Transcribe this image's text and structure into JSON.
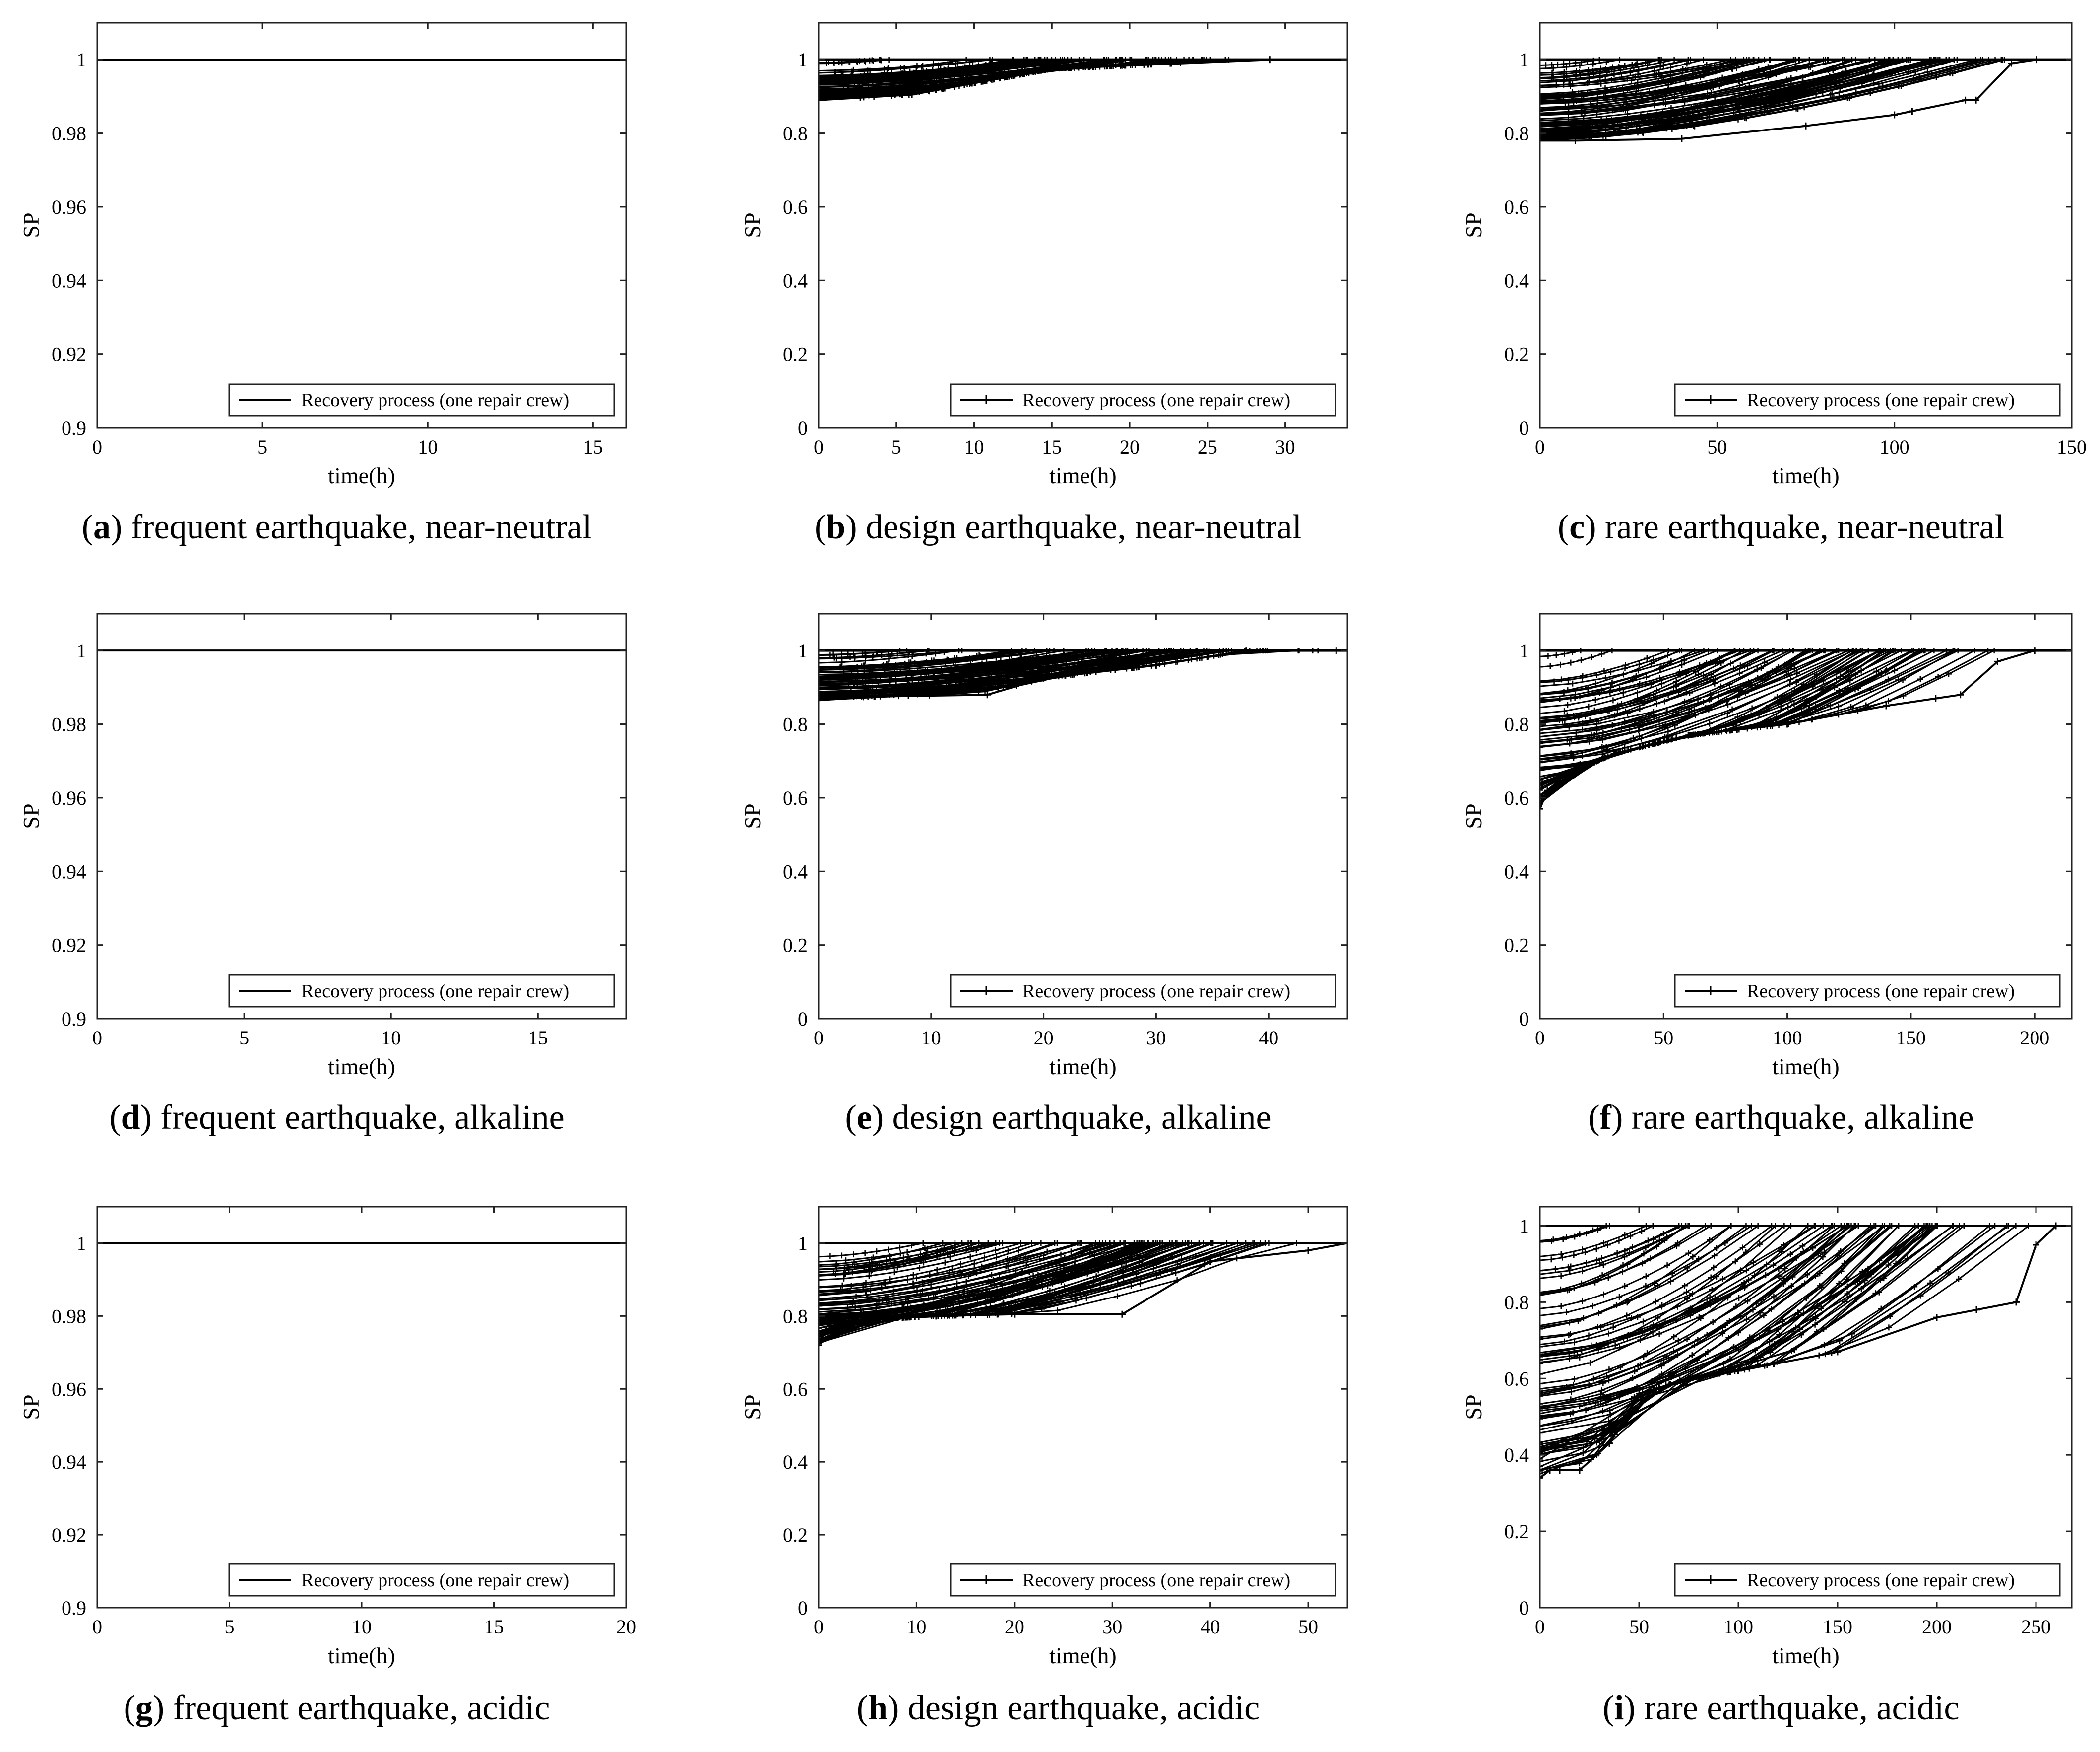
{
  "chart_data": [
    {
      "id": "a",
      "type": "line",
      "caption_letter": "a",
      "caption_text": " frequent earthquake, near-neutral",
      "xlabel": "time(h)",
      "ylabel": "SP",
      "xlim": [
        0,
        16
      ],
      "ylim": [
        0.9,
        1.01
      ],
      "xticks": [
        0,
        5,
        10,
        15
      ],
      "yticks": [
        0.9,
        0.92,
        0.94,
        0.96,
        0.98,
        1
      ],
      "ytick_labels": [
        "0.9",
        "0.92",
        "0.94",
        "0.96",
        "0.98",
        "1"
      ],
      "legend": "Recovery process (one repair crew)",
      "legend_position": "bottom-right",
      "grid": false,
      "markers": false,
      "series": [],
      "x": [
        0,
        16
      ],
      "y": [
        1,
        1
      ]
    },
    {
      "id": "b",
      "type": "line",
      "caption_letter": "b",
      "caption_text": " design earthquake, near-neutral",
      "xlabel": "time(h)",
      "ylabel": "SP",
      "xlim": [
        0,
        34
      ],
      "ylim": [
        0,
        1.1
      ],
      "xticks": [
        0,
        5,
        10,
        15,
        20,
        25,
        30
      ],
      "yticks": [
        0,
        0.2,
        0.4,
        0.6,
        0.8,
        1
      ],
      "ytick_labels": [
        "0",
        "0.2",
        "0.4",
        "0.6",
        "0.8",
        "1"
      ],
      "legend": "Recovery process (one repair crew)",
      "legend_position": "bottom-right",
      "grid": false,
      "markers": true,
      "lower_envelope": {
        "x": [
          0,
          6,
          15,
          29
        ],
        "y": [
          0.89,
          0.905,
          0.975,
          1.0
        ]
      },
      "final": {
        "x": 34,
        "y": 1.0
      }
    },
    {
      "id": "c",
      "type": "line",
      "caption_letter": "c",
      "caption_text": " rare earthquake, near-neutral",
      "xlabel": "time(h)",
      "ylabel": "SP",
      "xlim": [
        0,
        150
      ],
      "ylim": [
        0,
        1.1
      ],
      "xticks": [
        0,
        50,
        100,
        150
      ],
      "yticks": [
        0,
        0.2,
        0.4,
        0.6,
        0.8,
        1
      ],
      "ytick_labels": [
        "0",
        "0.2",
        "0.4",
        "0.6",
        "0.8",
        "1"
      ],
      "legend": "Recovery process (one repair crew)",
      "legend_position": "bottom-right",
      "grid": false,
      "markers": true,
      "lower_envelope": {
        "x": [
          0,
          10,
          40,
          75,
          100,
          105,
          120,
          123,
          133,
          140
        ],
        "y": [
          0.78,
          0.78,
          0.785,
          0.82,
          0.85,
          0.86,
          0.89,
          0.89,
          0.99,
          1.0
        ]
      },
      "final": {
        "x": 150,
        "y": 1.0
      }
    },
    {
      "id": "d",
      "type": "line",
      "caption_letter": "d",
      "caption_text": " frequent earthquake, alkaline",
      "xlabel": "time(h)",
      "ylabel": "SP",
      "xlim": [
        0,
        18
      ],
      "ylim": [
        0.9,
        1.01
      ],
      "xticks": [
        0,
        5,
        10,
        15
      ],
      "yticks": [
        0.9,
        0.92,
        0.94,
        0.96,
        0.98,
        1
      ],
      "ytick_labels": [
        "0.9",
        "0.92",
        "0.94",
        "0.96",
        "0.98",
        "1"
      ],
      "legend": "Recovery process (one repair crew)",
      "legend_position": "bottom-right",
      "grid": false,
      "markers": false,
      "series": [],
      "x": [
        0,
        18
      ],
      "y": [
        1,
        1
      ]
    },
    {
      "id": "e",
      "type": "line",
      "caption_letter": "e",
      "caption_text": " design earthquake, alkaline",
      "xlabel": "time(h)",
      "ylabel": "SP",
      "xlim": [
        0,
        47
      ],
      "ylim": [
        0,
        1.1
      ],
      "xticks": [
        0,
        10,
        20,
        30,
        40
      ],
      "yticks": [
        0,
        0.2,
        0.4,
        0.6,
        0.8,
        1
      ],
      "ytick_labels": [
        "0",
        "0.2",
        "0.4",
        "0.6",
        "0.8",
        "1"
      ],
      "legend": "Recovery process (one repair crew)",
      "legend_position": "bottom-right",
      "grid": false,
      "markers": true,
      "lower_envelope": {
        "x": [
          0,
          5,
          15,
          20,
          30,
          38,
          46
        ],
        "y": [
          0.865,
          0.875,
          0.88,
          0.925,
          0.96,
          1.0,
          1.0
        ]
      },
      "final": {
        "x": 47,
        "y": 1.0
      }
    },
    {
      "id": "f",
      "type": "line",
      "caption_letter": "f",
      "caption_text": " rare earthquake, alkaline",
      "xlabel": "time(h)",
      "ylabel": "SP",
      "xlim": [
        0,
        215
      ],
      "ylim": [
        0,
        1.1
      ],
      "xticks": [
        0,
        50,
        100,
        150,
        200
      ],
      "yticks": [
        0,
        0.2,
        0.4,
        0.6,
        0.8,
        1
      ],
      "ytick_labels": [
        "0",
        "0.2",
        "0.4",
        "0.6",
        "0.8",
        "1"
      ],
      "legend": "Recovery process (one repair crew)",
      "legend_position": "bottom-right",
      "grid": false,
      "markers": true,
      "lower_envelope": {
        "x": [
          0,
          3,
          10,
          30,
          60,
          100,
          140,
          160,
          170,
          185,
          200
        ],
        "y": [
          0.57,
          0.62,
          0.66,
          0.72,
          0.77,
          0.8,
          0.85,
          0.87,
          0.88,
          0.97,
          1.0
        ]
      },
      "final": {
        "x": 215,
        "y": 1.0
      }
    },
    {
      "id": "g",
      "type": "line",
      "caption_letter": "g",
      "caption_text": " frequent earthquake, acidic",
      "xlabel": "time(h)",
      "ylabel": "SP",
      "xlim": [
        0,
        20
      ],
      "ylim": [
        0.9,
        1.01
      ],
      "xticks": [
        0,
        5,
        10,
        15,
        20
      ],
      "yticks": [
        0.9,
        0.92,
        0.94,
        0.96,
        0.98,
        1
      ],
      "ytick_labels": [
        "0.9",
        "0.92",
        "0.94",
        "0.96",
        "0.98",
        "1"
      ],
      "legend": "Recovery process (one repair crew)",
      "legend_position": "bottom-right",
      "grid": false,
      "markers": false,
      "series": [],
      "x": [
        0,
        20
      ],
      "y": [
        1,
        1
      ]
    },
    {
      "id": "h",
      "type": "line",
      "caption_letter": "h",
      "caption_text": " design earthquake, acidic",
      "xlabel": "time(h)",
      "ylabel": "SP",
      "xlim": [
        0,
        54
      ],
      "ylim": [
        0,
        1.1
      ],
      "xticks": [
        0,
        10,
        20,
        30,
        40,
        50
      ],
      "yticks": [
        0,
        0.2,
        0.4,
        0.6,
        0.8,
        1
      ],
      "ytick_labels": [
        "0",
        "0.2",
        "0.4",
        "0.6",
        "0.8",
        "1"
      ],
      "legend": "Recovery process (one repair crew)",
      "legend_position": "bottom-right",
      "grid": false,
      "markers": true,
      "lower_envelope": {
        "x": [
          0,
          1,
          5,
          12,
          20,
          31,
          40,
          50
        ],
        "y": [
          0.72,
          0.78,
          0.79,
          0.8,
          0.805,
          0.805,
          0.95,
          0.98
        ]
      },
      "final": {
        "x": 54,
        "y": 1.0
      }
    },
    {
      "id": "i",
      "type": "line",
      "caption_letter": "i",
      "caption_text": " rare earthquake, acidic",
      "xlabel": "time(h)",
      "ylabel": "SP",
      "xlim": [
        0,
        268
      ],
      "ylim": [
        0,
        1.05
      ],
      "xticks": [
        0,
        50,
        100,
        150,
        200,
        250
      ],
      "yticks": [
        0,
        0.2,
        0.4,
        0.6,
        0.8,
        1
      ],
      "ytick_labels": [
        "0",
        "0.2",
        "0.4",
        "0.6",
        "0.8",
        "1"
      ],
      "legend": "Recovery process (one repair crew)",
      "legend_position": "bottom-right",
      "grid": false,
      "markers": true,
      "lower_envelope": {
        "x": [
          0,
          5,
          10,
          20,
          35,
          50,
          75,
          100,
          150,
          200,
          220,
          240,
          250,
          260
        ],
        "y": [
          0.34,
          0.36,
          0.36,
          0.36,
          0.43,
          0.56,
          0.6,
          0.62,
          0.67,
          0.76,
          0.78,
          0.8,
          0.95,
          1.0
        ]
      },
      "final": {
        "x": 268,
        "y": 1.0
      }
    }
  ]
}
